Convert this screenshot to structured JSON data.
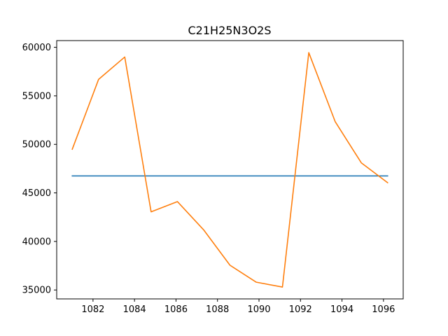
{
  "chart_data": {
    "type": "line",
    "title": "C21H25N3O2S",
    "xlabel": "",
    "ylabel": "",
    "xlim": [
      1080.25,
      1096.95
    ],
    "ylim": [
      34080,
      60690
    ],
    "x_ticks": [
      1082,
      1084,
      1086,
      1088,
      1090,
      1092,
      1094,
      1096
    ],
    "y_ticks": [
      35000,
      40000,
      45000,
      50000,
      55000,
      60000
    ],
    "grid": false,
    "legend": "none",
    "series": [
      {
        "color": "#1f77b4",
        "x": [
          1081.0,
          1096.2
        ],
        "y": [
          46750,
          46750
        ]
      },
      {
        "color": "#ff7f0e",
        "x": [
          1081.0,
          1082.27,
          1083.53,
          1084.8,
          1086.07,
          1087.33,
          1088.6,
          1089.87,
          1091.13,
          1092.4,
          1093.67,
          1094.93,
          1096.2
        ],
        "y": [
          49500,
          56700,
          59000,
          43050,
          44100,
          41200,
          37550,
          35800,
          35300,
          59450,
          52350,
          48100,
          46050
        ]
      }
    ]
  }
}
